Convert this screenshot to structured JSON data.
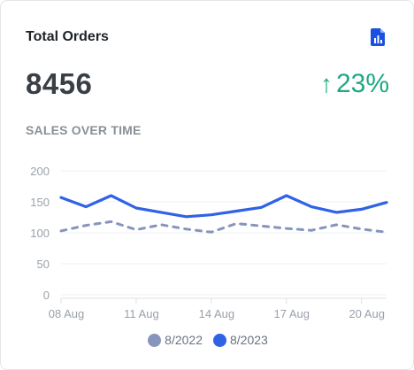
{
  "card": {
    "title": "Total Orders",
    "report_icon": "report-document-icon",
    "total": "8456",
    "change": {
      "arrow_icon": "arrow-up-icon",
      "arrow_glyph": "↑",
      "value": "23%",
      "color": "#1fa882"
    },
    "section_label": "SALES OVER TIME"
  },
  "chart_data": {
    "type": "line",
    "x": [
      "08 Aug",
      "09 Aug",
      "10 Aug",
      "11 Aug",
      "12 Aug",
      "13 Aug",
      "14 Aug",
      "15 Aug",
      "16 Aug",
      "17 Aug",
      "18 Aug",
      "19 Aug",
      "20 Aug",
      "21 Aug"
    ],
    "x_tick_labels": [
      "08 Aug",
      "11 Aug",
      "14 Aug",
      "17 Aug",
      "20 Aug"
    ],
    "y_tick_labels": [
      "200",
      "150",
      "100",
      "50",
      "0"
    ],
    "ylim": [
      0,
      200
    ],
    "grid": true,
    "legend": "bottom",
    "series": [
      {
        "name": "8/2022",
        "color": "#8795bd",
        "dashed": true,
        "values": [
          103,
          112,
          118,
          105,
          113,
          106,
          101,
          115,
          111,
          107,
          104,
          113,
          106,
          101
        ]
      },
      {
        "name": "8/2023",
        "color": "#2f62e5",
        "dashed": false,
        "values": [
          157,
          142,
          160,
          140,
          133,
          126,
          129,
          135,
          141,
          160,
          142,
          133,
          138,
          149
        ]
      }
    ]
  }
}
